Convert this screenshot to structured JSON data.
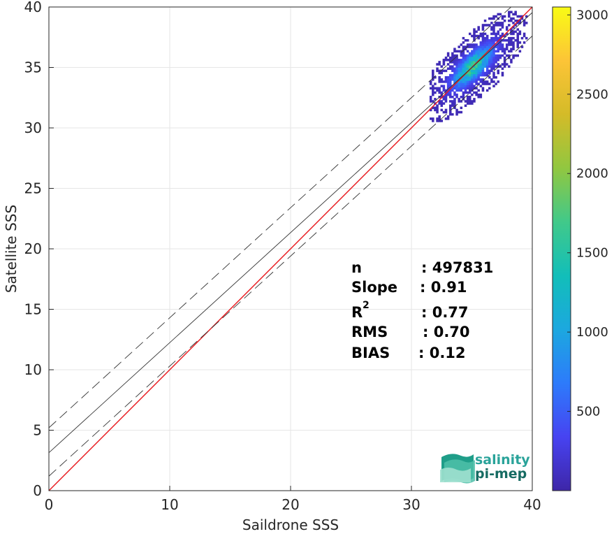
{
  "chart_data": {
    "type": "heatmap",
    "title": "",
    "xlabel": "Saildrone SSS",
    "ylabel": "Satellite SSS",
    "xlim": [
      0,
      40
    ],
    "ylim": [
      0,
      40
    ],
    "xticks": [
      0,
      10,
      20,
      30,
      40
    ],
    "yticks": [
      0,
      5,
      10,
      15,
      20,
      25,
      30,
      35,
      40
    ],
    "grid": true,
    "colorbar": {
      "range": [
        0,
        3050
      ],
      "ticks": [
        500,
        1000,
        1500,
        2000,
        2500,
        3000
      ],
      "colormap": "parula",
      "colors": [
        "#3e26a8",
        "#4743f1",
        "#2d7bfb",
        "#1ca8df",
        "#12beb9",
        "#41c98a",
        "#91c740",
        "#d4bb28",
        "#fcc437",
        "#f9fb15"
      ]
    },
    "density_cluster": {
      "x_range": [
        31.5,
        39.5
      ],
      "y_range": [
        30.5,
        39.5
      ],
      "peak": [
        35,
        35
      ]
    },
    "lines": [
      {
        "name": "identity",
        "slope": 1.0,
        "intercept": 0.0,
        "style": "solid",
        "color": "#e8161b"
      },
      {
        "name": "fit",
        "slope": 0.91,
        "intercept": 3.14,
        "style": "solid",
        "color": "#333333"
      },
      {
        "name": "fit-upper",
        "slope": 0.91,
        "intercept": 5.2,
        "style": "dashed",
        "color": "#333333"
      },
      {
        "name": "fit-lower",
        "slope": 0.91,
        "intercept": 1.2,
        "style": "dashed",
        "color": "#333333"
      }
    ],
    "stats": [
      {
        "label": "n",
        "value": ": 497831"
      },
      {
        "label": "Slope",
        "value": ": 0.91"
      },
      {
        "label": "R",
        "sup": "2",
        "value": ": 0.77"
      },
      {
        "label": "RMS",
        "value": ": 0.70"
      },
      {
        "label": "BIAS",
        "value": ": 0.12"
      }
    ],
    "logo": {
      "line1": "salinity",
      "line2": "pi-mep"
    }
  }
}
